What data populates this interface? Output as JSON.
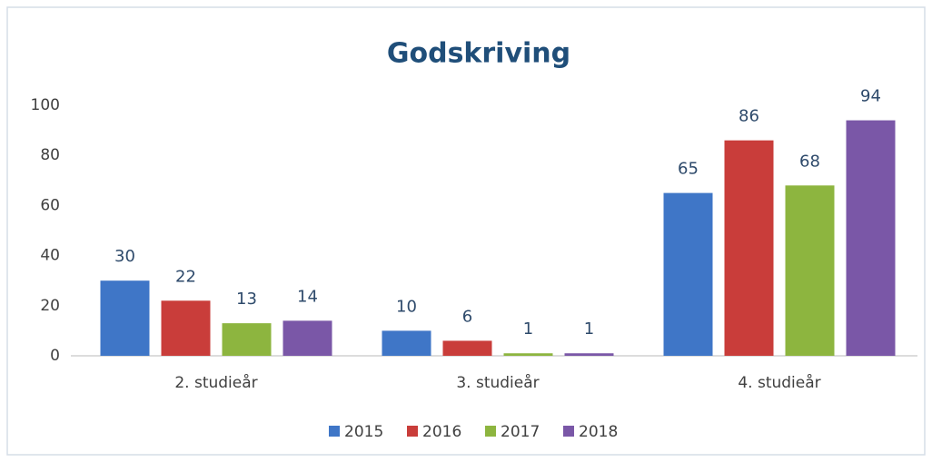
{
  "chart_data": {
    "type": "bar",
    "title": "Godskriving",
    "categories": [
      "2. studieår",
      "3. studieår",
      "4. studieår"
    ],
    "series": [
      {
        "name": "2015",
        "color": "#3f76c7",
        "values": [
          30,
          10,
          65
        ]
      },
      {
        "name": "2016",
        "color": "#c93d3a",
        "values": [
          22,
          6,
          86
        ]
      },
      {
        "name": "2017",
        "color": "#8db53f",
        "values": [
          13,
          1,
          68
        ]
      },
      {
        "name": "2018",
        "color": "#7a57a7",
        "values": [
          14,
          1,
          94
        ]
      }
    ],
    "ylim": [
      0,
      100
    ],
    "yticks": [
      0,
      20,
      40,
      60,
      80,
      100
    ],
    "grid": false,
    "legend": "bottom"
  }
}
